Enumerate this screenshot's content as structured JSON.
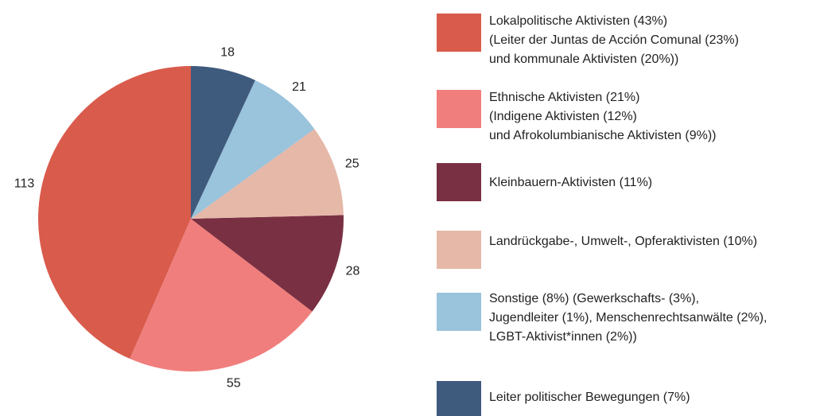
{
  "chart_data": {
    "type": "pie",
    "direction": "counterclockwise",
    "categories": [
      [
        "Lokalpolitische Aktivisten (43%)",
        "(Leiter der Juntas de Acción Comunal (23%)",
        "und kommunale Aktivisten (20%))"
      ],
      [
        "Ethnische Aktivisten (21%)",
        "(Indigene Aktivisten (12%)",
        "und Afrokolumbianische Aktivisten (9%))"
      ],
      [
        "Kleinbauern-Aktivisten (11%)"
      ],
      [
        "Landrückgabe-, Umwelt-, Opferaktivisten (10%)"
      ],
      [
        "Sonstige (8%) (Gewerkschafts- (3%),",
        "Jugendleiter (1%), Menschenrechtsanwälte (2%),",
        "LGBT-Aktivist*innen (2%))"
      ],
      [
        "Leiter politischer Bewegungen (7%)"
      ]
    ],
    "values": [
      113,
      55,
      28,
      25,
      21,
      18
    ],
    "colors": [
      "#d95b4c",
      "#f07e7c",
      "#7a3043",
      "#e5b8a8",
      "#9ac3dc",
      "#3e5a7d"
    ]
  }
}
